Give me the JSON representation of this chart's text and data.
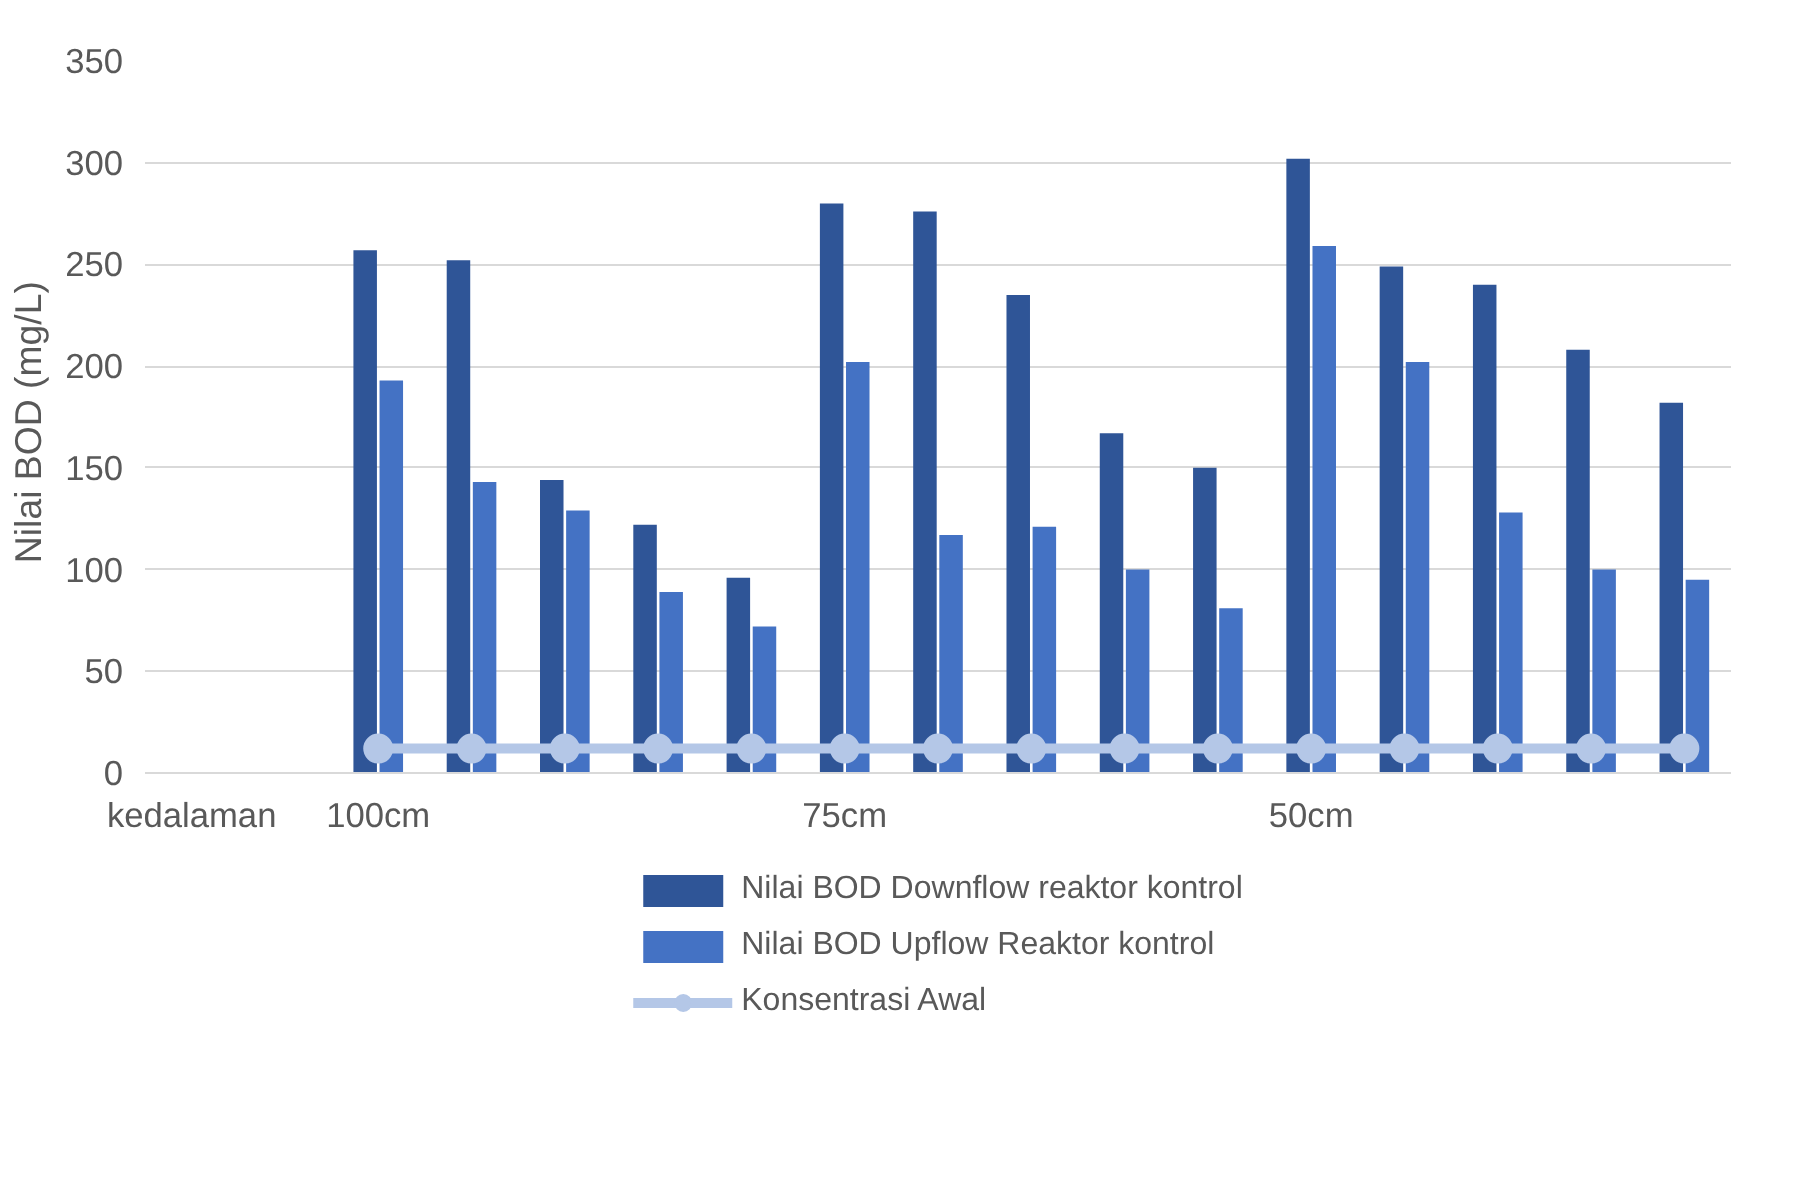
{
  "chart_data": {
    "type": "bar",
    "ylabel": "Nilai BOD  (mg/L)",
    "categories": [
      "kedalaman",
      null,
      "100cm",
      null,
      null,
      null,
      null,
      "75cm",
      null,
      null,
      null,
      null,
      "50cm",
      null,
      null,
      null,
      null
    ],
    "series": [
      {
        "name": "Nilai BOD Downflow reaktor kontrol",
        "color": "#2f5597",
        "values": [
          null,
          null,
          257,
          252,
          144,
          122,
          96,
          280,
          276,
          235,
          167,
          150,
          302,
          249,
          240,
          208,
          182
        ]
      },
      {
        "name": "Nilai BOD Upflow Reaktor kontrol",
        "color": "#4472c4",
        "values": [
          null,
          null,
          193,
          143,
          129,
          89,
          72,
          202,
          117,
          121,
          100,
          81,
          259,
          202,
          128,
          100,
          95
        ]
      },
      {
        "name": "Konsentrasi Awal",
        "type": "line",
        "marker": "circle",
        "color": "#b4c7e7",
        "values": [
          null,
          null,
          12,
          12,
          12,
          12,
          12,
          12,
          12,
          12,
          12,
          12,
          12,
          12,
          12,
          12,
          12
        ]
      }
    ],
    "ylim": [
      0,
      350
    ],
    "yticks": [
      0,
      50,
      100,
      150,
      200,
      250,
      300,
      350
    ],
    "grid": "y",
    "legend": "bottom"
  }
}
